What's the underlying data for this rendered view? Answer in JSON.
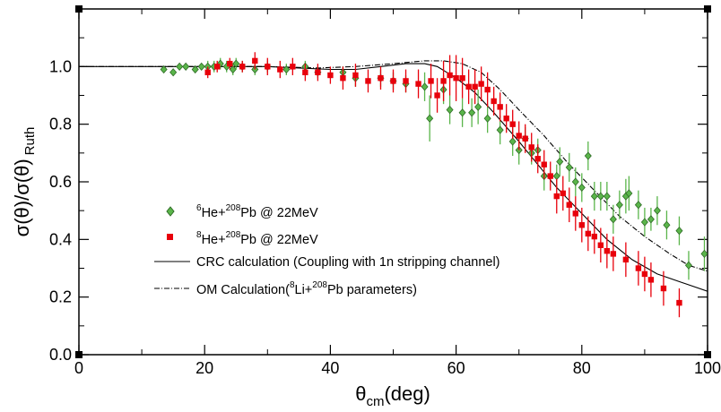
{
  "chart_data": {
    "type": "scatter",
    "title": "",
    "xlabel": {
      "main": "θ",
      "sub": "cm",
      "rest": "(deg)"
    },
    "ylabel": {
      "main": "σ(θ)/σ(θ)",
      "sub": "Ruth"
    },
    "xlim": [
      0,
      100
    ],
    "ylim": [
      0,
      1.2
    ],
    "x_ticks": [
      "0",
      "20",
      "40",
      "60",
      "80",
      "100"
    ],
    "y_ticks": [
      "0.0",
      "0.2",
      "0.4",
      "0.6",
      "0.8",
      "1.0"
    ],
    "grid": false,
    "legend_position": "lower-left",
    "series": [
      {
        "name": "6He+208Pb @ 22MeV",
        "legend": {
          "sup1": "6",
          "t1": "He+",
          "sup2": "208",
          "t2": "Pb @ 22MeV"
        },
        "marker": "diamond",
        "color": "#5ab54a",
        "points": [
          [
            13.5,
            0.99,
            0.01
          ],
          [
            15,
            0.98,
            0.01
          ],
          [
            16,
            1.0,
            0.01
          ],
          [
            17,
            1.0,
            0.01
          ],
          [
            18.5,
            0.99,
            0.01
          ],
          [
            19.5,
            1.0,
            0.01
          ],
          [
            20.5,
            1.0,
            0.02
          ],
          [
            21.5,
            1.0,
            0.02
          ],
          [
            22.5,
            1.01,
            0.02
          ],
          [
            23.5,
            1.0,
            0.02
          ],
          [
            24.5,
            0.99,
            0.02
          ],
          [
            25,
            1.01,
            0.02
          ],
          [
            26,
            1.0,
            0.02
          ],
          [
            28,
            0.99,
            0.02
          ],
          [
            30,
            1.0,
            0.02
          ],
          [
            33,
            0.99,
            0.02
          ],
          [
            36,
            1.0,
            0.02
          ],
          [
            38,
            0.98,
            0.02
          ],
          [
            42,
            0.98,
            0.02
          ],
          [
            44,
            0.96,
            0.03
          ],
          [
            48,
            0.96,
            0.03
          ],
          [
            50,
            0.95,
            0.03
          ],
          [
            52,
            0.94,
            0.03
          ],
          [
            55,
            0.93,
            0.05
          ],
          [
            55.8,
            0.82,
            0.08
          ],
          [
            58,
            0.92,
            0.05
          ],
          [
            59,
            0.85,
            0.05
          ],
          [
            61,
            0.84,
            0.05
          ],
          [
            62.5,
            0.84,
            0.05
          ],
          [
            63.5,
            0.86,
            0.06
          ],
          [
            65,
            0.82,
            0.05
          ],
          [
            67,
            0.78,
            0.05
          ],
          [
            69,
            0.74,
            0.05
          ],
          [
            70,
            0.71,
            0.05
          ],
          [
            71,
            0.75,
            0.04
          ],
          [
            72,
            0.7,
            0.04
          ],
          [
            73,
            0.71,
            0.04
          ],
          [
            74,
            0.62,
            0.05
          ],
          [
            76,
            0.62,
            0.04
          ],
          [
            76.5,
            0.67,
            0.05
          ],
          [
            78,
            0.65,
            0.05
          ],
          [
            79,
            0.6,
            0.05
          ],
          [
            80,
            0.58,
            0.05
          ],
          [
            81,
            0.69,
            0.05
          ],
          [
            82,
            0.55,
            0.05
          ],
          [
            83,
            0.55,
            0.05
          ],
          [
            84,
            0.55,
            0.05
          ],
          [
            85,
            0.47,
            0.05
          ],
          [
            86,
            0.52,
            0.05
          ],
          [
            87,
            0.55,
            0.06
          ],
          [
            87.5,
            0.56,
            0.06
          ],
          [
            89,
            0.52,
            0.05
          ],
          [
            90,
            0.46,
            0.05
          ],
          [
            91,
            0.47,
            0.04
          ],
          [
            92,
            0.5,
            0.05
          ],
          [
            93.5,
            0.45,
            0.05
          ],
          [
            95.5,
            0.43,
            0.05
          ],
          [
            97,
            0.31,
            0.05
          ],
          [
            99.5,
            0.35,
            0.06
          ]
        ]
      },
      {
        "name": "8He+208Pb @ 22MeV",
        "legend": {
          "sup1": "8",
          "t1": "He+",
          "sup2": "208",
          "t2": "Pb @ 22MeV"
        },
        "marker": "square",
        "color": "#e8000b",
        "points": [
          [
            20.5,
            0.98,
            0.02
          ],
          [
            22,
            1.0,
            0.02
          ],
          [
            24,
            1.01,
            0.02
          ],
          [
            26,
            1.0,
            0.02
          ],
          [
            28,
            1.02,
            0.03
          ],
          [
            30,
            1.0,
            0.03
          ],
          [
            32,
            0.99,
            0.03
          ],
          [
            34,
            1.0,
            0.03
          ],
          [
            36,
            0.98,
            0.03
          ],
          [
            38,
            0.98,
            0.03
          ],
          [
            40,
            0.97,
            0.03
          ],
          [
            42,
            0.96,
            0.04
          ],
          [
            44,
            0.97,
            0.04
          ],
          [
            46,
            0.95,
            0.04
          ],
          [
            48,
            0.96,
            0.04
          ],
          [
            50,
            0.95,
            0.04
          ],
          [
            52,
            0.95,
            0.04
          ],
          [
            54,
            0.94,
            0.05
          ],
          [
            56,
            0.95,
            0.06
          ],
          [
            57,
            0.9,
            0.06
          ],
          [
            58,
            0.95,
            0.07
          ],
          [
            59,
            0.97,
            0.07
          ],
          [
            60,
            0.96,
            0.08
          ],
          [
            61,
            0.96,
            0.07
          ],
          [
            62,
            0.93,
            0.06
          ],
          [
            63,
            0.93,
            0.06
          ],
          [
            64,
            0.94,
            0.06
          ],
          [
            65,
            0.92,
            0.06
          ],
          [
            66,
            0.88,
            0.05
          ],
          [
            67,
            0.86,
            0.05
          ],
          [
            68,
            0.82,
            0.05
          ],
          [
            69,
            0.8,
            0.05
          ],
          [
            70,
            0.76,
            0.05
          ],
          [
            71,
            0.75,
            0.05
          ],
          [
            72,
            0.72,
            0.05
          ],
          [
            73,
            0.68,
            0.05
          ],
          [
            74,
            0.66,
            0.05
          ],
          [
            75,
            0.62,
            0.05
          ],
          [
            76,
            0.55,
            0.06
          ],
          [
            77,
            0.56,
            0.06
          ],
          [
            78,
            0.52,
            0.06
          ],
          [
            79,
            0.49,
            0.06
          ],
          [
            80,
            0.45,
            0.06
          ],
          [
            81,
            0.42,
            0.06
          ],
          [
            82,
            0.41,
            0.06
          ],
          [
            83,
            0.38,
            0.06
          ],
          [
            84,
            0.36,
            0.06
          ],
          [
            85,
            0.35,
            0.06
          ],
          [
            87,
            0.33,
            0.06
          ],
          [
            89,
            0.3,
            0.06
          ],
          [
            90,
            0.28,
            0.06
          ],
          [
            91,
            0.26,
            0.06
          ],
          [
            93,
            0.23,
            0.06
          ],
          [
            95.5,
            0.18,
            0.05
          ]
        ]
      },
      {
        "name": "CRC calculation (Coupling with 1n stripping channel)",
        "legend": {
          "t1": "CRC calculation (Coupling with 1n stripping channel)"
        },
        "line": "solid",
        "color": "#000000",
        "points": [
          [
            0,
            1.0
          ],
          [
            20,
            1.0
          ],
          [
            30,
            1.0
          ],
          [
            35,
            0.995
          ],
          [
            40,
            0.99
          ],
          [
            44,
            0.99
          ],
          [
            48,
            1.0
          ],
          [
            52,
            1.01
          ],
          [
            55,
            1.01
          ],
          [
            57,
            1.0
          ],
          [
            60,
            0.96
          ],
          [
            63,
            0.91
          ],
          [
            66,
            0.84
          ],
          [
            70,
            0.74
          ],
          [
            73,
            0.66
          ],
          [
            76,
            0.58
          ],
          [
            80,
            0.49
          ],
          [
            84,
            0.4
          ],
          [
            88,
            0.33
          ],
          [
            92,
            0.28
          ],
          [
            96,
            0.25
          ],
          [
            100,
            0.22
          ]
        ]
      },
      {
        "name": "OM Calculation(8Li+208Pb parameters)",
        "legend": {
          "t1": "OM Calculation(",
          "sup1": "8",
          "t2": "Li+",
          "sup2": "208",
          "t3": "Pb parameters)"
        },
        "line": "dash-dot",
        "color": "#000000",
        "points": [
          [
            0,
            1.0
          ],
          [
            30,
            1.0
          ],
          [
            38,
            0.995
          ],
          [
            44,
            1.0
          ],
          [
            50,
            1.01
          ],
          [
            55,
            1.02
          ],
          [
            58,
            1.02
          ],
          [
            61,
            1.01
          ],
          [
            64,
            0.98
          ],
          [
            67,
            0.92
          ],
          [
            70,
            0.85
          ],
          [
            74,
            0.76
          ],
          [
            78,
            0.66
          ],
          [
            82,
            0.57
          ],
          [
            86,
            0.48
          ],
          [
            90,
            0.41
          ],
          [
            94,
            0.35
          ],
          [
            97,
            0.31
          ],
          [
            100,
            0.29
          ]
        ]
      }
    ]
  }
}
